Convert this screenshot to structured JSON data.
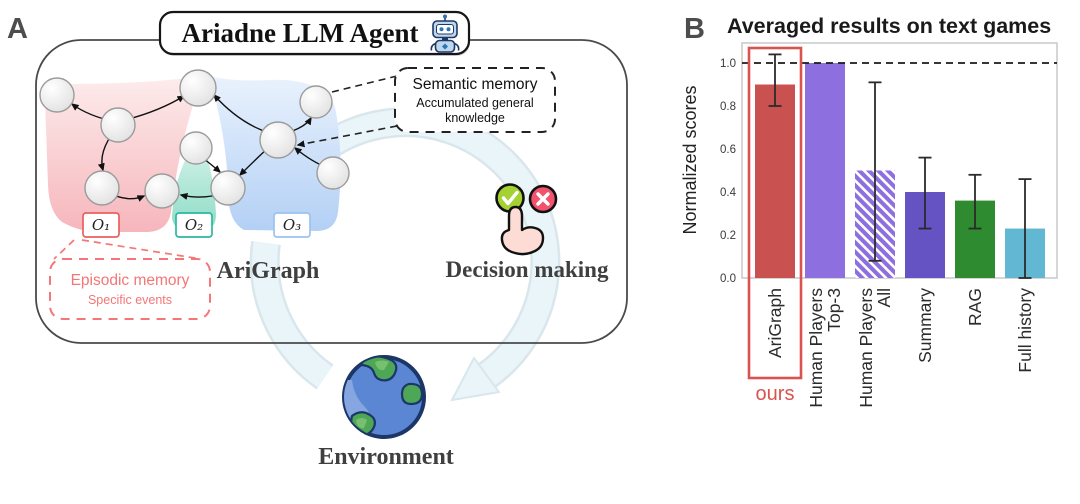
{
  "panel_a": {
    "label": "A",
    "title": "Ariadne LLM Agent",
    "observations": [
      "O₁",
      "O₂",
      "O₃"
    ],
    "colors": {
      "o1_border": "#e8605f",
      "o2_border": "#2bb8a3",
      "o3_border": "#9cc3ef",
      "o1_region": "#f6b6bc",
      "o2_region": "#8edcc6",
      "o3_region": "#b3d0f5",
      "episodic": "#f47676",
      "semantic": "#222222",
      "cycle_arrow": "#eaf5f9"
    },
    "episodic_box": {
      "title": "Episodic memory",
      "subtitle": "Specific events"
    },
    "semantic_box": {
      "title": "Semantic memory",
      "subtitle_line1": "Accumulated general",
      "subtitle_line2": "knowledge"
    },
    "arigraph_label": "AriGraph",
    "decision_label": "Decision making",
    "environment_label": "Environment",
    "icons": {
      "robot": "robot-icon",
      "check": "check-circle-icon",
      "cross": "cross-circle-icon",
      "hand": "pointing-hand-icon",
      "globe": "globe-icon",
      "cycle": "cycle-arrow-icon"
    }
  },
  "panel_b": {
    "label": "B"
  },
  "chart_data": {
    "type": "bar",
    "title": "Averaged results on text games",
    "xlabel": "",
    "ylabel": "Normalized scores",
    "ylim": [
      0,
      1.09
    ],
    "yticks": [
      "0.0",
      "0.2",
      "0.4",
      "0.6",
      "0.8",
      "1.0"
    ],
    "reference_line": 1.0,
    "grid": false,
    "legend": "none",
    "categories": [
      [
        "AriGraph"
      ],
      [
        "Human Players",
        "Top-3"
      ],
      [
        "Human Players",
        "All"
      ],
      [
        "Summary"
      ],
      [
        "RAG"
      ],
      [
        "Full history"
      ]
    ],
    "values": [
      0.9,
      1.0,
      0.5,
      0.4,
      0.36,
      0.23
    ],
    "error_low": [
      0.8,
      null,
      0.08,
      0.23,
      0.23,
      0.0
    ],
    "error_high": [
      1.04,
      null,
      0.91,
      0.56,
      0.48,
      0.46
    ],
    "bar_colors": [
      "#c9514f",
      "#8e6fdf",
      "#8e6fdf",
      "#6553c4",
      "#2e8b30",
      "#62b8d2"
    ],
    "hatched": [
      false,
      false,
      true,
      false,
      false,
      false
    ],
    "highlight": {
      "index": 0,
      "label": "ours",
      "color": "#d9534f"
    }
  }
}
